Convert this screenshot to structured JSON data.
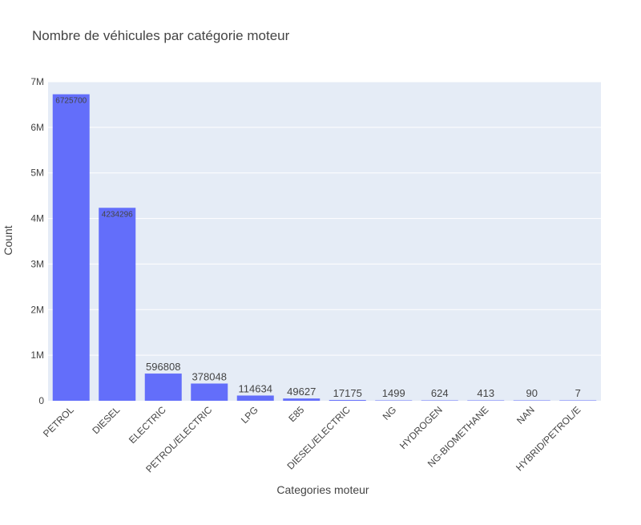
{
  "chart_data": {
    "type": "bar",
    "title": "Nombre de véhicules par catégorie moteur",
    "xlabel": "Categories moteur",
    "ylabel": "Count",
    "categories": [
      "PETROL",
      "DIESEL",
      "ELECTRIC",
      "PETROL/ELECTRIC",
      "LPG",
      "E85",
      "DIESEL/ELECTRIC",
      "NG",
      "HYDROGEN",
      "NG-BIOMETHANE",
      "NAN",
      "HYBRID/PETROL/E"
    ],
    "values": [
      6725700,
      4234296,
      596808,
      378048,
      114634,
      49627,
      17175,
      1499,
      624,
      413,
      90,
      7
    ],
    "data_labels": [
      "6725700",
      "4234296",
      "596808",
      "378048",
      "114634",
      "49627",
      "17175",
      "1499",
      "624",
      "413",
      "90",
      "7"
    ],
    "ylim": [
      0,
      7000000
    ],
    "yticks": [
      0,
      1000000,
      2000000,
      3000000,
      4000000,
      5000000,
      6000000,
      7000000
    ],
    "ytick_labels": [
      "0",
      "1M",
      "2M",
      "3M",
      "4M",
      "5M",
      "6M",
      "7M"
    ],
    "grid": true,
    "legend": "none",
    "colors": {
      "bar": "#636efa",
      "plot_background": "#e5ecf6",
      "gridline": "#ffffff",
      "text": "#444444"
    }
  }
}
